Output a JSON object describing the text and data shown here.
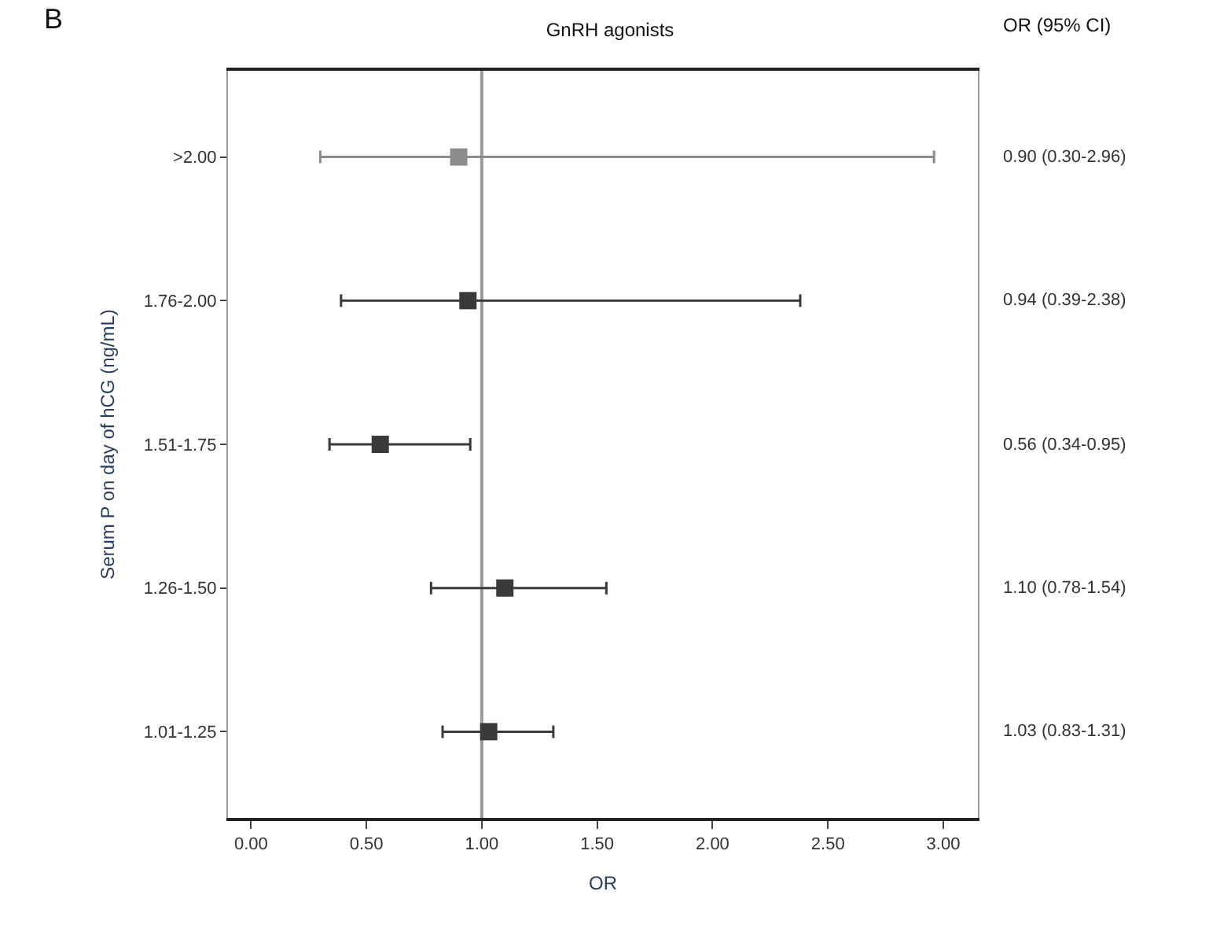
{
  "chart_data": {
    "type": "scatter",
    "orientation": "horizontal",
    "title": "GnRH agonists",
    "xlabel": "OR",
    "ylabel": "Serum P on day of hCG (ng/mL)",
    "categories": [
      ">2.00",
      "1.76-2.00",
      "1.51-1.75",
      "1.26-1.50",
      "1.01-1.25"
    ],
    "values": [
      0.9,
      0.94,
      0.56,
      1.1,
      1.03
    ],
    "errors": [
      [
        0.3,
        2.96
      ],
      [
        0.39,
        2.38
      ],
      [
        0.34,
        0.95
      ],
      [
        0.78,
        1.54
      ],
      [
        0.83,
        1.31
      ]
    ],
    "colors": [
      "#8c8c8c",
      "#3a3a3a",
      "#3a3a3a",
      "#3a3a3a",
      "#3a3a3a"
    ],
    "value_labels": [
      "0.90 (0.30-2.96)",
      "0.94 (0.39-2.38)",
      "0.56 (0.34-0.95)",
      "1.10 (0.78-1.54)",
      "1.03 (0.83-1.31)"
    ],
    "annotations": [
      "B",
      "OR (95% CI)"
    ],
    "ref_lines": [
      {
        "axis": "x",
        "value": 1.0,
        "label": null,
        "color": "#9a9a9a"
      }
    ],
    "xlim": [
      -0.1,
      3.15
    ],
    "xticks": [
      {
        "value": 0,
        "label": "0.00"
      },
      {
        "value": 0.5,
        "label": "0.50"
      },
      {
        "value": 1,
        "label": "1.00"
      },
      {
        "value": 1.5,
        "label": "1.50"
      },
      {
        "value": 2,
        "label": "2.00"
      },
      {
        "value": 2.5,
        "label": "2.50"
      },
      {
        "value": 3,
        "label": "3.00"
      }
    ],
    "grid": false,
    "marker": "square"
  }
}
